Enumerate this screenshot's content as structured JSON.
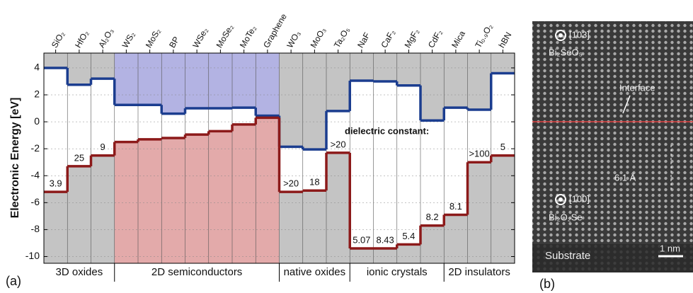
{
  "chart_data": {
    "type": "band_alignment",
    "ylabel": "Electronic Energy [eV]",
    "panel_label": "(a)",
    "annotation": "dielectric constant:",
    "categories": [
      "SiO₂",
      "HfO₂",
      "Al₂O₃",
      "WS₂",
      "MoS₂",
      "BP",
      "WSe₂",
      "MoSe₂",
      "MoTe₂",
      "Graphene",
      "WO₃",
      "MoO₃",
      "Ta₂O₅",
      "NaF",
      "CaF₂",
      "MgF₂",
      "CdF₂",
      "Mica",
      "Ti₀.₉O₂",
      "hBN"
    ],
    "series": [
      {
        "color": "#1b3d8f",
        "fill": "#b3b3e3",
        "values": [
          4.0,
          2.75,
          3.2,
          1.25,
          1.25,
          0.6,
          1.0,
          1.0,
          1.05,
          0.45,
          -1.85,
          -2.05,
          0.8,
          3.05,
          3.0,
          2.7,
          0.1,
          1.05,
          0.9,
          3.6
        ]
      },
      {
        "color": "#8c1a1a",
        "fill": "#e3aaaa",
        "values": [
          -5.2,
          -3.3,
          -2.5,
          -1.5,
          -1.3,
          -1.2,
          -0.95,
          -0.7,
          -0.2,
          0.3,
          -5.2,
          -5.1,
          -2.3,
          -9.4,
          -9.4,
          -9.1,
          -7.7,
          -6.9,
          -3.0,
          -2.5
        ]
      }
    ],
    "dielectric_constants": [
      3.9,
      25,
      9,
      null,
      null,
      null,
      null,
      null,
      null,
      null,
      ">20",
      18,
      ">20",
      5.07,
      8.43,
      5.4,
      8.2,
      8.1,
      ">100",
      5
    ],
    "groups": [
      {
        "label": "3D oxides",
        "members": [
          "SiO₂",
          "HfO₂",
          "Al₂O₃"
        ]
      },
      {
        "label": "2D semiconductors",
        "members": [
          "WS₂",
          "MoS₂",
          "BP",
          "WSe₂",
          "MoSe₂",
          "MoTe₂",
          "Graphene"
        ]
      },
      {
        "label": "native oxides",
        "members": [
          "WO₃",
          "MoO₃",
          "Ta₂O₅"
        ]
      },
      {
        "label": "ionic crystals",
        "members": [
          "NaF",
          "CaF₂",
          "MgF₂",
          "CdF₂"
        ]
      },
      {
        "label": "2D insulators",
        "members": [
          "Mica",
          "Ti₀.₉O₂",
          "hBN"
        ]
      }
    ],
    "ylim": [
      -10.5,
      5.1
    ],
    "yticks": [
      4,
      2,
      0,
      -2,
      -4,
      -6,
      -8,
      -10
    ],
    "grid": true,
    "background_color": "#c4c4c4"
  },
  "panel_b": {
    "panel_label": "(b)",
    "top_direction": "[103]",
    "top_material": "Bi₂SeO₅",
    "interface": "Interface",
    "spacing": "6.1 Å",
    "bottom_direction": "[100]",
    "bottom_material": "Bi₂O₂Se",
    "substrate": "Substrate",
    "scale_bar": "1 nm"
  }
}
